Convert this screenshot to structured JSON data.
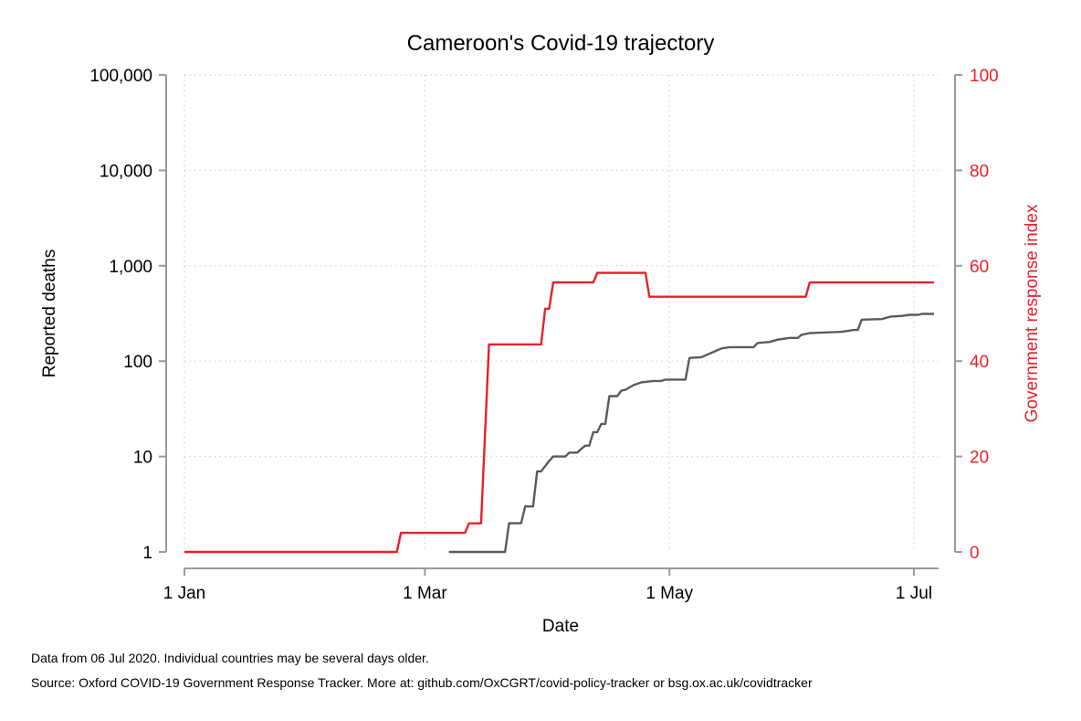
{
  "chart_data": {
    "type": "line",
    "title": "Cameroon's Covid-19 trajectory",
    "xlabel": "Date",
    "ylabel": "Reported deaths",
    "y2label": "Government response index",
    "x_ticks": [
      {
        "date": "2020-01-01",
        "label": "1 Jan"
      },
      {
        "date": "2020-03-01",
        "label": "1 Mar"
      },
      {
        "date": "2020-05-01",
        "label": "1 May"
      },
      {
        "date": "2020-07-01",
        "label": "1 Jul"
      }
    ],
    "x_range": [
      "2020-01-01",
      "2020-07-06"
    ],
    "y_scale": "log",
    "ylim": [
      1,
      100000
    ],
    "y_ticks": [
      {
        "value": 1,
        "label": "1"
      },
      {
        "value": 10,
        "label": "10"
      },
      {
        "value": 100,
        "label": "100"
      },
      {
        "value": 1000,
        "label": "1,000"
      },
      {
        "value": 10000,
        "label": "10,000"
      },
      {
        "value": 100000,
        "label": "100,000"
      }
    ],
    "y2lim": [
      0,
      100
    ],
    "y2_ticks": [
      {
        "value": 0,
        "label": "0"
      },
      {
        "value": 20,
        "label": "20"
      },
      {
        "value": 40,
        "label": "40"
      },
      {
        "value": 60,
        "label": "60"
      },
      {
        "value": 80,
        "label": "80"
      },
      {
        "value": 100,
        "label": "100"
      }
    ],
    "grid": true,
    "colors": {
      "deaths": "#5b5b5b",
      "response": "#e8202a"
    },
    "series": [
      {
        "axis": "left",
        "points": [
          [
            "2020-03-07",
            1
          ],
          [
            "2020-03-21",
            1
          ],
          [
            "2020-03-22",
            2
          ],
          [
            "2020-03-25",
            2
          ],
          [
            "2020-03-26",
            3
          ],
          [
            "2020-03-28",
            3
          ],
          [
            "2020-03-29",
            7
          ],
          [
            "2020-03-30",
            7
          ],
          [
            "2020-04-01",
            9
          ],
          [
            "2020-04-02",
            10
          ],
          [
            "2020-04-05",
            10
          ],
          [
            "2020-04-06",
            11
          ],
          [
            "2020-04-08",
            11
          ],
          [
            "2020-04-09",
            12
          ],
          [
            "2020-04-10",
            13
          ],
          [
            "2020-04-11",
            13
          ],
          [
            "2020-04-12",
            18
          ],
          [
            "2020-04-13",
            18
          ],
          [
            "2020-04-14",
            22
          ],
          [
            "2020-04-15",
            22
          ],
          [
            "2020-04-16",
            43
          ],
          [
            "2020-04-18",
            43
          ],
          [
            "2020-04-19",
            49
          ],
          [
            "2020-04-20",
            50
          ],
          [
            "2020-04-22",
            56
          ],
          [
            "2020-04-24",
            60
          ],
          [
            "2020-04-27",
            62
          ],
          [
            "2020-04-29",
            62
          ],
          [
            "2020-04-30",
            64
          ],
          [
            "2020-05-05",
            64
          ],
          [
            "2020-05-06",
            108
          ],
          [
            "2020-05-09",
            110
          ],
          [
            "2020-05-12",
            125
          ],
          [
            "2020-05-14",
            136
          ],
          [
            "2020-05-16",
            140
          ],
          [
            "2020-05-22",
            140
          ],
          [
            "2020-05-23",
            155
          ],
          [
            "2020-05-26",
            159
          ],
          [
            "2020-05-28",
            168
          ],
          [
            "2020-05-31",
            175
          ],
          [
            "2020-06-02",
            175
          ],
          [
            "2020-06-03",
            189
          ],
          [
            "2020-06-05",
            197
          ],
          [
            "2020-06-09",
            200
          ],
          [
            "2020-06-13",
            203
          ],
          [
            "2020-06-16",
            212
          ],
          [
            "2020-06-17",
            212
          ],
          [
            "2020-06-18",
            272
          ],
          [
            "2020-06-23",
            276
          ],
          [
            "2020-06-25",
            292
          ],
          [
            "2020-06-28",
            298
          ],
          [
            "2020-06-30",
            306
          ],
          [
            "2020-07-02",
            306
          ],
          [
            "2020-07-03",
            313
          ],
          [
            "2020-07-06",
            313
          ]
        ]
      },
      {
        "axis": "right",
        "points": [
          [
            "2020-01-01",
            0
          ],
          [
            "2020-02-23",
            0
          ],
          [
            "2020-02-24",
            4
          ],
          [
            "2020-03-11",
            4
          ],
          [
            "2020-03-12",
            6
          ],
          [
            "2020-03-15",
            6
          ],
          [
            "2020-03-17",
            43.5
          ],
          [
            "2020-03-30",
            43.5
          ],
          [
            "2020-03-31",
            51
          ],
          [
            "2020-04-01",
            51
          ],
          [
            "2020-04-02",
            56.5
          ],
          [
            "2020-04-12",
            56.5
          ],
          [
            "2020-04-13",
            58.5
          ],
          [
            "2020-04-25",
            58.5
          ],
          [
            "2020-04-26",
            53.5
          ],
          [
            "2020-06-04",
            53.5
          ],
          [
            "2020-06-05",
            56.5
          ],
          [
            "2020-07-06",
            56.5
          ]
        ]
      }
    ]
  },
  "notes": [
    "Data from 06 Jul 2020. Individual countries may be several days older.",
    "Source: Oxford COVID-19 Government Response Tracker. More at: github.com/OxCGRT/covid-policy-tracker or bsg.ox.ac.uk/covidtracker"
  ]
}
